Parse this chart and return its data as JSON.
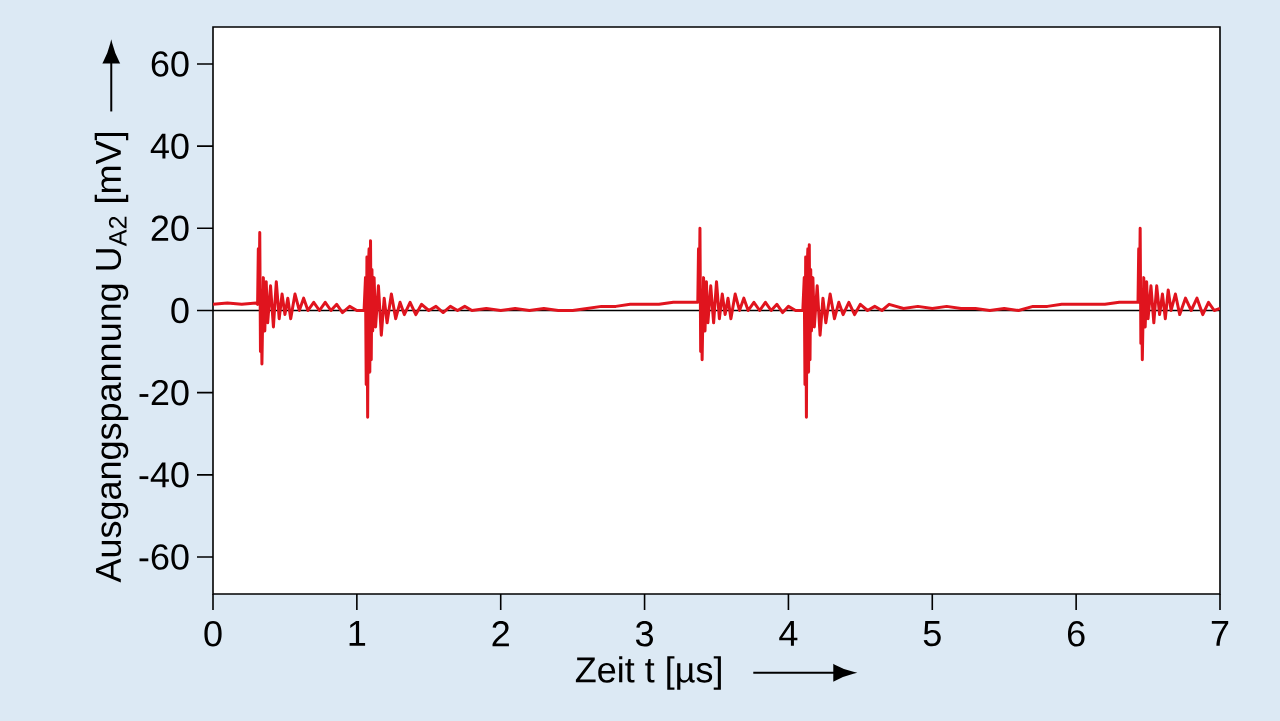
{
  "chart_data": {
    "type": "line",
    "xlabel": "Zeit t [µs]",
    "ylabel": "Ausgangspannung U$_{A2}$ [mV]",
    "xlim": [
      0,
      7
    ],
    "ylim": [
      -69,
      69
    ],
    "xticks": [
      0,
      1,
      2,
      3,
      4,
      5,
      6,
      7
    ],
    "yticks": [
      -60,
      -40,
      -20,
      0,
      20,
      40,
      60
    ],
    "ref_lines": [
      {
        "axis": "y",
        "value": 0,
        "color": "#000000"
      }
    ],
    "legend": false,
    "grid": false,
    "marker": "none",
    "line_style": "solid",
    "series": [
      {
        "color": "#e0141e",
        "x": [
          0,
          0.1,
          0.2,
          0.3,
          0.31,
          0.315,
          0.32,
          0.325,
          0.33,
          0.335,
          0.34,
          0.35,
          0.36,
          0.37,
          0.38,
          0.4,
          0.42,
          0.44,
          0.46,
          0.48,
          0.5,
          0.52,
          0.54,
          0.57,
          0.6,
          0.63,
          0.66,
          0.7,
          0.74,
          0.78,
          0.82,
          0.86,
          0.9,
          0.95,
          1.0,
          1.05,
          1.06,
          1.065,
          1.07,
          1.075,
          1.08,
          1.085,
          1.09,
          1.095,
          1.1,
          1.105,
          1.11,
          1.12,
          1.13,
          1.15,
          1.17,
          1.19,
          1.21,
          1.24,
          1.27,
          1.3,
          1.33,
          1.37,
          1.41,
          1.45,
          1.5,
          1.55,
          1.6,
          1.65,
          1.7,
          1.75,
          1.8,
          1.9,
          2.0,
          2.1,
          2.2,
          2.3,
          2.4,
          2.5,
          2.6,
          2.7,
          2.8,
          2.9,
          3.0,
          3.1,
          3.2,
          3.3,
          3.37,
          3.375,
          3.38,
          3.385,
          3.39,
          3.395,
          3.4,
          3.41,
          3.42,
          3.43,
          3.44,
          3.46,
          3.48,
          3.5,
          3.52,
          3.54,
          3.56,
          3.58,
          3.6,
          3.63,
          3.66,
          3.69,
          3.72,
          3.76,
          3.8,
          3.84,
          3.88,
          3.92,
          3.96,
          4.0,
          4.05,
          4.1,
          4.11,
          4.115,
          4.12,
          4.125,
          4.13,
          4.135,
          4.14,
          4.145,
          4.15,
          4.155,
          4.16,
          4.17,
          4.18,
          4.2,
          4.22,
          4.24,
          4.26,
          4.29,
          4.32,
          4.35,
          4.38,
          4.42,
          4.46,
          4.5,
          4.55,
          4.6,
          4.65,
          4.7,
          4.8,
          4.9,
          5.0,
          5.1,
          5.2,
          5.3,
          5.4,
          5.5,
          5.6,
          5.7,
          5.8,
          5.9,
          6.0,
          6.1,
          6.2,
          6.3,
          6.43,
          6.435,
          6.44,
          6.445,
          6.45,
          6.455,
          6.46,
          6.47,
          6.48,
          6.49,
          6.5,
          6.52,
          6.54,
          6.56,
          6.58,
          6.6,
          6.62,
          6.64,
          6.66,
          6.69,
          6.72,
          6.76,
          6.8,
          6.84,
          6.88,
          6.92,
          6.96,
          7.0
        ],
        "values": [
          1.5,
          1.8,
          1.5,
          1.8,
          1.5,
          15,
          2,
          19,
          -10,
          5,
          -13,
          8,
          -5,
          7,
          -3,
          6,
          -4,
          7,
          -2,
          4,
          -1,
          3,
          -2,
          4,
          0,
          3,
          0,
          2,
          0,
          2,
          0,
          1.5,
          -0.5,
          1,
          0,
          0,
          8,
          -18,
          13,
          -26,
          10,
          15,
          -15,
          17,
          -12,
          10,
          -5,
          8,
          -4,
          6,
          -6,
          3,
          -3,
          4,
          -2,
          2,
          -1,
          2,
          -1,
          1.5,
          0,
          1,
          -0.5,
          1,
          0,
          1,
          0,
          0.5,
          0,
          0.5,
          0,
          0.5,
          0,
          0,
          0.5,
          1,
          1,
          1.5,
          1.5,
          1.5,
          2,
          2,
          2,
          15,
          2,
          20,
          -10,
          5,
          -12,
          8,
          -5,
          7,
          -3,
          6,
          -3,
          7,
          -2,
          4,
          -1,
          3,
          -2,
          4,
          0,
          3,
          0,
          2,
          0,
          2,
          0,
          1.5,
          -0.5,
          1,
          0,
          0,
          8,
          -18,
          13,
          -26,
          10,
          15,
          -15,
          16,
          -12,
          10,
          -5,
          8,
          -4,
          6,
          -6,
          3,
          -3,
          4,
          -2,
          2,
          -1,
          2,
          -1,
          1.5,
          0,
          1,
          0,
          1.5,
          0.5,
          1,
          0.5,
          1,
          0.5,
          0.5,
          0,
          0.5,
          0,
          1,
          1,
          1.5,
          1.5,
          1.5,
          1.5,
          2,
          2,
          15,
          2,
          20,
          -8,
          5,
          -12,
          8,
          -4,
          7,
          -2,
          6,
          -3,
          6,
          -1,
          4,
          -2,
          5,
          0,
          4,
          -1,
          3,
          0,
          3,
          -1,
          2,
          0,
          0.5
        ]
      }
    ]
  }
}
